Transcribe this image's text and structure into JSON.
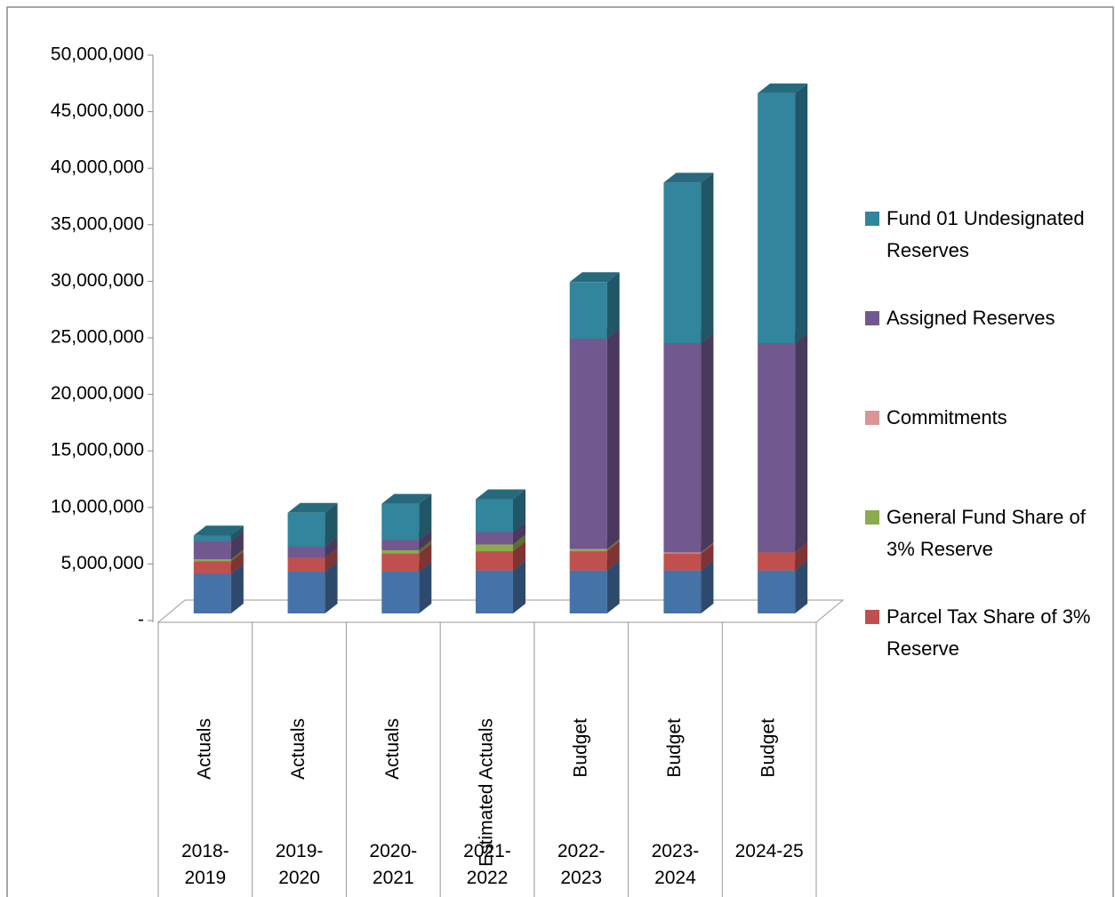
{
  "chart_data": {
    "type": "bar3d_stacked",
    "categories": [
      "2018-2019",
      "2019-2020",
      "2020-2021",
      "2021-2022",
      "2022-2023",
      "2023-2024",
      "2024-25"
    ],
    "category_labels": [
      "Actuals",
      "Actuals",
      "Actuals",
      "Estimated Actuals",
      "Budget",
      "Budget",
      "Budget"
    ],
    "series": [
      {
        "color": "#4572a7",
        "values": [
          3500000,
          3700000,
          3700000,
          3800000,
          3800000,
          3800000,
          3800000
        ]
      },
      {
        "name": "Parcel Tax Share of 3% Reserve",
        "color": "#c0504d",
        "values": [
          1100000,
          1200000,
          1600000,
          1700000,
          1700000,
          1500000,
          1600000
        ]
      },
      {
        "name": "General Fund Share of 3% Reserve",
        "color": "#8bab4c",
        "values": [
          200000,
          0,
          300000,
          600000,
          100000,
          0,
          0
        ]
      },
      {
        "name": "Commitments",
        "color": "#d99694",
        "values": [
          0,
          0,
          0,
          0,
          100000,
          100000,
          0
        ]
      },
      {
        "name": "Assigned Reserves",
        "color": "#71588f",
        "values": [
          1600000,
          1000000,
          900000,
          1100000,
          18600000,
          18500000,
          18500000
        ]
      },
      {
        "name": "Fund 01 Undesignated Reserves",
        "color": "#31859c",
        "values": [
          500000,
          3000000,
          3200000,
          2900000,
          5000000,
          14200000,
          22100000
        ]
      }
    ],
    "ylim": [
      0,
      50000000
    ],
    "yticks": [
      {
        "value": 0,
        "label": "-"
      },
      {
        "value": 5000000,
        "label": "5,000,000"
      },
      {
        "value": 10000000,
        "label": "10,000,000"
      },
      {
        "value": 15000000,
        "label": "15,000,000"
      },
      {
        "value": 20000000,
        "label": "20,000,000"
      },
      {
        "value": 25000000,
        "label": "25,000,000"
      },
      {
        "value": 30000000,
        "label": "30,000,000"
      },
      {
        "value": 35000000,
        "label": "35,000,000"
      },
      {
        "value": 40000000,
        "label": "40,000,000"
      },
      {
        "value": 45000000,
        "label": "45,000,000"
      },
      {
        "value": 50000000,
        "label": "50,000,000"
      }
    ],
    "legend": "right"
  }
}
